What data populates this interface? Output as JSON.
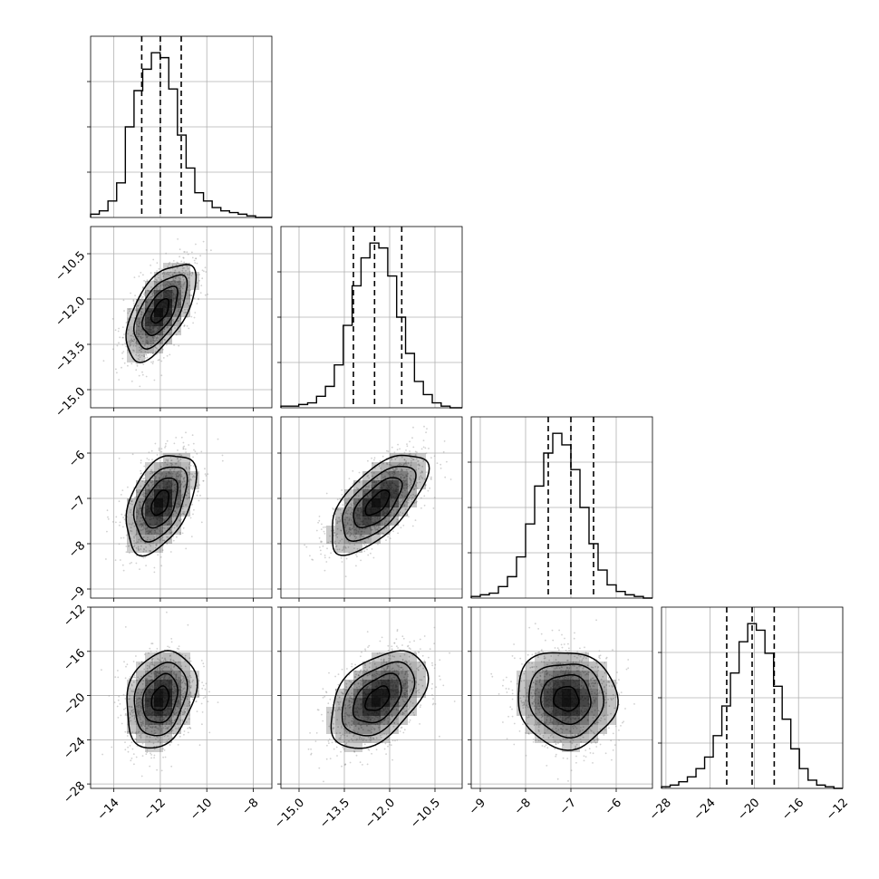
{
  "chart_data": {
    "type": "corner",
    "parameters": 4,
    "grid": true,
    "quantiles": [
      0.16,
      0.5,
      0.84
    ],
    "density_color": "#000000",
    "axes": [
      {
        "range": [
          -15,
          -7.2
        ],
        "ticks": [
          -14,
          -12,
          -10,
          -8
        ],
        "tick_labels": [
          "−14",
          "−12",
          "−10",
          "−8"
        ]
      },
      {
        "range": [
          -15.6,
          -9.6
        ],
        "ticks": [
          -15.0,
          -13.5,
          -12.0,
          -10.5
        ],
        "tick_labels": [
          "−15.0",
          "−13.5",
          "−12.0",
          "−10.5"
        ]
      },
      {
        "range": [
          -9.2,
          -5.2
        ],
        "ticks": [
          -9,
          -8,
          -7,
          -6
        ],
        "tick_labels": [
          "−9",
          "−8",
          "−7",
          "−6"
        ]
      },
      {
        "range": [
          -28.4,
          -12
        ],
        "ticks": [
          -28,
          -24,
          -20,
          -16,
          -12
        ],
        "tick_labels": [
          "−28",
          "−24",
          "−20",
          "−16",
          "−12"
        ]
      }
    ],
    "bottom_ticks": [
      {
        "ticks": [
          -14,
          -12,
          -10,
          -8
        ],
        "tick_labels": [
          "−14",
          "−12",
          "−10",
          "−8"
        ]
      },
      {
        "ticks": [
          -15.0,
          -13.5,
          -12.0,
          -10.5
        ],
        "tick_labels": [
          "−15.0",
          "−13.5",
          "−12.0",
          "−10.5"
        ]
      },
      {
        "ticks": [
          -9,
          -8,
          -7,
          -6
        ],
        "tick_labels": [
          "−9",
          "−8",
          "−7",
          "−6"
        ]
      },
      {
        "ticks": [
          -28,
          -24,
          -20,
          -16,
          -12
        ],
        "tick_labels": [
          "−28",
          "−24",
          "−20",
          "−16",
          "−12"
        ]
      }
    ],
    "left_ticks": [
      {
        "ticks": [
          -10.5,
          -12.0,
          -13.5,
          -15.0
        ],
        "tick_labels": [
          "−10.5",
          "−12.0",
          "−13.5",
          "−15.0"
        ]
      },
      {
        "ticks": [
          -6,
          -7,
          -8,
          -9
        ],
        "tick_labels": [
          "−6",
          "−7",
          "−8",
          "−9"
        ]
      },
      {
        "ticks": [
          -12,
          -16,
          -20,
          -24,
          -28
        ],
        "tick_labels": [
          "−12",
          "−16",
          "−20",
          "−24",
          "−28"
        ]
      }
    ],
    "marginals": [
      {
        "param": 0,
        "quantile_values": [
          -12.8,
          -12.0,
          -11.1
        ],
        "hist_range": [
          -15,
          -7.9
        ],
        "counts": [
          2,
          4,
          10,
          21,
          55,
          77,
          90,
          100,
          97,
          78,
          50,
          30,
          15,
          10,
          6,
          4,
          3,
          2,
          1
        ]
      },
      {
        "param": 1,
        "quantile_values": [
          -13.2,
          -12.5,
          -11.6
        ],
        "hist_range": [
          -15.6,
          -10.0
        ],
        "counts": [
          1,
          1,
          2,
          3,
          7,
          13,
          26,
          50,
          74,
          91,
          100,
          97,
          80,
          55,
          33,
          16,
          8,
          3,
          1
        ]
      },
      {
        "param": 2,
        "quantile_values": [
          -7.5,
          -7.0,
          -6.5
        ],
        "hist_range": [
          -9.2,
          -5.4
        ],
        "counts": [
          1,
          2,
          3,
          7,
          13,
          25,
          45,
          68,
          88,
          100,
          93,
          78,
          55,
          33,
          17,
          8,
          4,
          2,
          1
        ]
      },
      {
        "param": 3,
        "quantile_values": [
          -22.5,
          -20.2,
          -18.2
        ],
        "hist_range": [
          -28.4,
          -12.8
        ],
        "counts": [
          1,
          2,
          4,
          7,
          12,
          19,
          32,
          50,
          70,
          89,
          100,
          96,
          82,
          62,
          42,
          24,
          12,
          5,
          2,
          1
        ]
      }
    ],
    "joints": [
      {
        "row": 1,
        "col": 0,
        "mean": [
          -12.0,
          -12.4
        ],
        "sd": [
          0.75,
          0.8
        ],
        "rho": 0.6
      },
      {
        "row": 2,
        "col": 0,
        "mean": [
          -12.0,
          -7.1
        ],
        "sd": [
          0.75,
          0.55
        ],
        "rho": 0.45
      },
      {
        "row": 2,
        "col": 1,
        "mean": [
          -12.4,
          -7.1
        ],
        "sd": [
          0.8,
          0.55
        ],
        "rho": 0.65
      },
      {
        "row": 3,
        "col": 0,
        "mean": [
          -12.0,
          -20.3
        ],
        "sd": [
          0.75,
          2.2
        ],
        "rho": 0.25
      },
      {
        "row": 3,
        "col": 1,
        "mean": [
          -12.4,
          -20.3
        ],
        "sd": [
          0.8,
          2.2
        ],
        "rho": 0.45
      },
      {
        "row": 3,
        "col": 2,
        "mean": [
          -7.1,
          -20.3
        ],
        "sd": [
          0.55,
          2.2
        ],
        "rho": -0.05
      }
    ]
  }
}
